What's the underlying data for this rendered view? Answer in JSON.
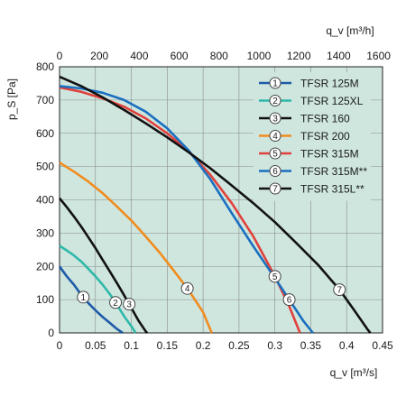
{
  "chart_data": {
    "type": "line",
    "background": "#cfe6df",
    "x": {
      "label": "q_v [m³/s]",
      "min": 0,
      "max": 0.45,
      "ticks": [
        "0",
        "0.05",
        "0.1",
        "0.15",
        "0.2",
        "0.25",
        "0.3",
        "0.35",
        "0.4",
        "0.45"
      ]
    },
    "x2": {
      "label": "q_v [m³/h]",
      "min": 0,
      "max": 1620,
      "ticks": [
        "0",
        "200",
        "400",
        "600",
        "800",
        "1000",
        "1200",
        "1400",
        "1600"
      ]
    },
    "y": {
      "label": "p_S [Pa]",
      "min": 0,
      "max": 800,
      "ticks": [
        "0",
        "100",
        "200",
        "300",
        "400",
        "500",
        "600",
        "700",
        "800"
      ]
    },
    "grid": true,
    "legend_position": "top-right",
    "series": [
      {
        "id": "1",
        "name": "TFSR 125M",
        "color": "#1e5aa8",
        "marker_x": 0.033,
        "points": [
          [
            0,
            200
          ],
          [
            0.01,
            170
          ],
          [
            0.02,
            145
          ],
          [
            0.03,
            115
          ],
          [
            0.04,
            90
          ],
          [
            0.05,
            68
          ],
          [
            0.06,
            48
          ],
          [
            0.07,
            30
          ],
          [
            0.08,
            12
          ],
          [
            0.088,
            0
          ]
        ]
      },
      {
        "id": "2",
        "name": "TFSR 125XL",
        "color": "#2fb8a8",
        "marker_x": 0.078,
        "points": [
          [
            0,
            262
          ],
          [
            0.01,
            248
          ],
          [
            0.02,
            233
          ],
          [
            0.03,
            215
          ],
          [
            0.04,
            193
          ],
          [
            0.05,
            170
          ],
          [
            0.06,
            145
          ],
          [
            0.07,
            117
          ],
          [
            0.08,
            85
          ],
          [
            0.09,
            50
          ],
          [
            0.1,
            20
          ],
          [
            0.106,
            0
          ]
        ]
      },
      {
        "id": "3",
        "name": "TFSR 160",
        "color": "#111111",
        "marker_x": 0.097,
        "points": [
          [
            0,
            405
          ],
          [
            0.01,
            378
          ],
          [
            0.02,
            350
          ],
          [
            0.03,
            320
          ],
          [
            0.04,
            288
          ],
          [
            0.05,
            255
          ],
          [
            0.06,
            220
          ],
          [
            0.07,
            185
          ],
          [
            0.08,
            150
          ],
          [
            0.09,
            113
          ],
          [
            0.1,
            75
          ],
          [
            0.11,
            37
          ],
          [
            0.12,
            5
          ],
          [
            0.122,
            0
          ]
        ]
      },
      {
        "id": "4",
        "name": "TFSR 200",
        "color": "#f08c1e",
        "marker_x": 0.178,
        "points": [
          [
            0,
            512
          ],
          [
            0.02,
            485
          ],
          [
            0.04,
            455
          ],
          [
            0.06,
            420
          ],
          [
            0.08,
            380
          ],
          [
            0.1,
            338
          ],
          [
            0.12,
            290
          ],
          [
            0.14,
            240
          ],
          [
            0.16,
            185
          ],
          [
            0.18,
            128
          ],
          [
            0.2,
            62
          ],
          [
            0.212,
            0
          ]
        ]
      },
      {
        "id": "5",
        "name": "TFSR 315M",
        "color": "#e0413c",
        "marker_x": 0.3,
        "points": [
          [
            0,
            738
          ],
          [
            0.03,
            725
          ],
          [
            0.06,
            705
          ],
          [
            0.09,
            680
          ],
          [
            0.12,
            645
          ],
          [
            0.15,
            600
          ],
          [
            0.18,
            545
          ],
          [
            0.21,
            475
          ],
          [
            0.24,
            390
          ],
          [
            0.27,
            290
          ],
          [
            0.3,
            170
          ],
          [
            0.32,
            80
          ],
          [
            0.335,
            0
          ]
        ]
      },
      {
        "id": "6",
        "name": "TFSR 315M**",
        "color": "#1a6fbf",
        "marker_x": 0.32,
        "points": [
          [
            0,
            742
          ],
          [
            0.03,
            735
          ],
          [
            0.06,
            722
          ],
          [
            0.09,
            700
          ],
          [
            0.12,
            665
          ],
          [
            0.15,
            615
          ],
          [
            0.18,
            548
          ],
          [
            0.21,
            462
          ],
          [
            0.24,
            360
          ],
          [
            0.27,
            260
          ],
          [
            0.3,
            165
          ],
          [
            0.32,
            100
          ],
          [
            0.34,
            35
          ],
          [
            0.353,
            0
          ]
        ]
      },
      {
        "id": "7",
        "name": "TFSR 315L**",
        "color": "#111111",
        "marker_x": 0.39,
        "points": [
          [
            0,
            770
          ],
          [
            0.03,
            742
          ],
          [
            0.06,
            708
          ],
          [
            0.09,
            670
          ],
          [
            0.12,
            630
          ],
          [
            0.15,
            588
          ],
          [
            0.18,
            543
          ],
          [
            0.21,
            495
          ],
          [
            0.24,
            443
          ],
          [
            0.27,
            390
          ],
          [
            0.3,
            333
          ],
          [
            0.33,
            270
          ],
          [
            0.36,
            205
          ],
          [
            0.39,
            130
          ],
          [
            0.41,
            70
          ],
          [
            0.43,
            8
          ],
          [
            0.433,
            0
          ]
        ]
      }
    ]
  }
}
